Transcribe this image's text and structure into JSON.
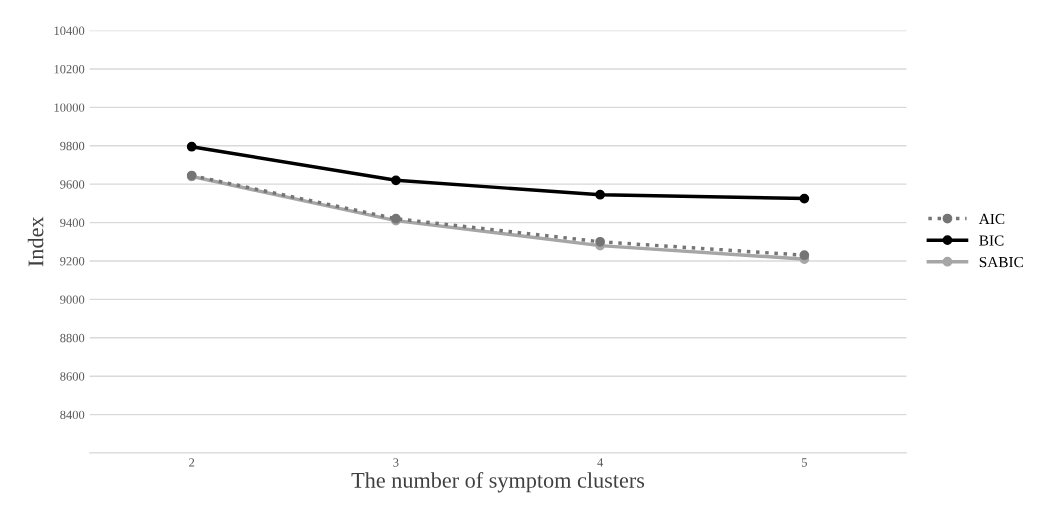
{
  "chart_data": {
    "type": "line",
    "xlabel": "The number of symptom clusters",
    "ylabel": "Index",
    "categories": [
      "2",
      "3",
      "4",
      "5"
    ],
    "series": [
      {
        "name": "AIC",
        "color": "#757575",
        "line_style": "dotted",
        "values": [
          9645,
          9420,
          9300,
          9230
        ]
      },
      {
        "name": "BIC",
        "color": "#000000",
        "line_style": "solid",
        "values": [
          9795,
          9620,
          9545,
          9525
        ]
      },
      {
        "name": "SABIC",
        "color": "#a6a6a6",
        "line_style": "solid",
        "values": [
          9640,
          9410,
          9280,
          9210
        ]
      }
    ],
    "ylim": [
      8200,
      10400
    ],
    "yticks": [
      {
        "value": 8200,
        "label": null
      },
      8400,
      8600,
      8800,
      9000,
      9200,
      9400,
      9600,
      9800,
      10000,
      10200,
      10400
    ],
    "grid": "y",
    "legend": "right",
    "marker": "circle"
  }
}
